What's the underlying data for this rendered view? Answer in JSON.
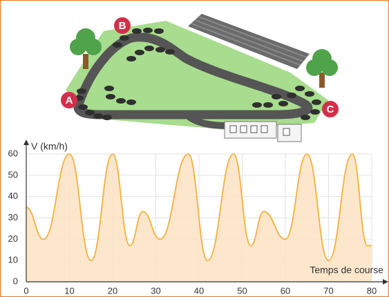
{
  "illustration": {
    "labels": [
      "A",
      "B",
      "C"
    ]
  },
  "chart_data": {
    "type": "area",
    "ylabel": "V (km/h)",
    "xlabel": "Temps de course",
    "x": [
      0,
      4,
      10,
      15,
      20,
      24,
      27,
      31,
      37.5,
      42,
      48,
      52,
      55,
      60,
      65,
      70,
      75.5,
      79,
      80
    ],
    "values": [
      35,
      20,
      60,
      10,
      60,
      17,
      33,
      20,
      60,
      10,
      60,
      17,
      33,
      20,
      60,
      10,
      60,
      17,
      17
    ],
    "color": "#f4b54a",
    "fill": "#fbe3c3",
    "xlim": [
      0,
      80
    ],
    "ylim": [
      0,
      60
    ],
    "xticks": [
      0,
      10,
      20,
      30,
      40,
      50,
      60,
      70,
      80
    ],
    "yticks": [
      0,
      10,
      20,
      30,
      40,
      50,
      60
    ],
    "grid": true
  }
}
